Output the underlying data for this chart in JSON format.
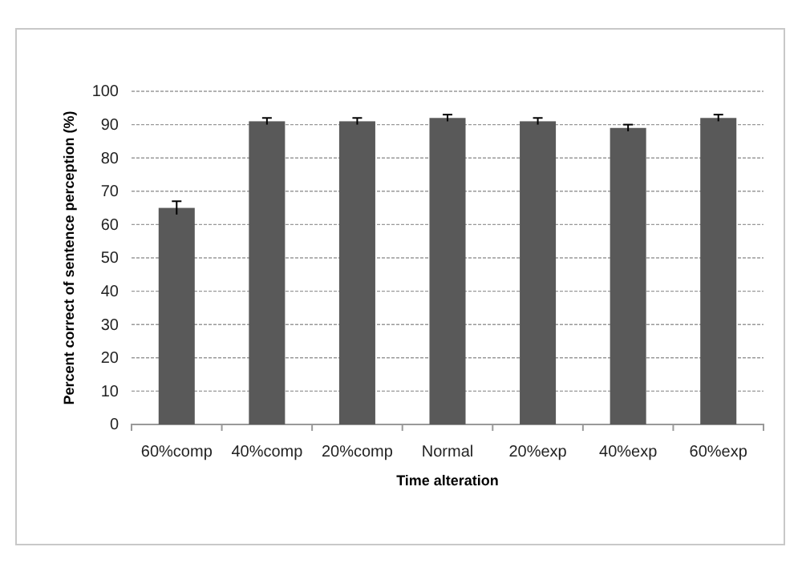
{
  "chart_data": {
    "type": "bar",
    "xlabel": "Time alteration",
    "ylabel": "Percent correct of sentence perception (%)",
    "categories": [
      "60%comp",
      "40%comp",
      "20%comp",
      "Normal",
      "20%exp",
      "40%exp",
      "60%exp"
    ],
    "values": [
      65,
      91,
      91,
      92,
      91,
      89,
      92
    ],
    "errors": [
      2,
      1,
      1,
      1,
      1,
      1,
      1
    ],
    "color": "#595959",
    "ylim": [
      0,
      100
    ],
    "yticks": [
      0,
      10,
      20,
      30,
      40,
      50,
      60,
      70,
      80,
      90,
      100
    ],
    "grid": "y"
  }
}
